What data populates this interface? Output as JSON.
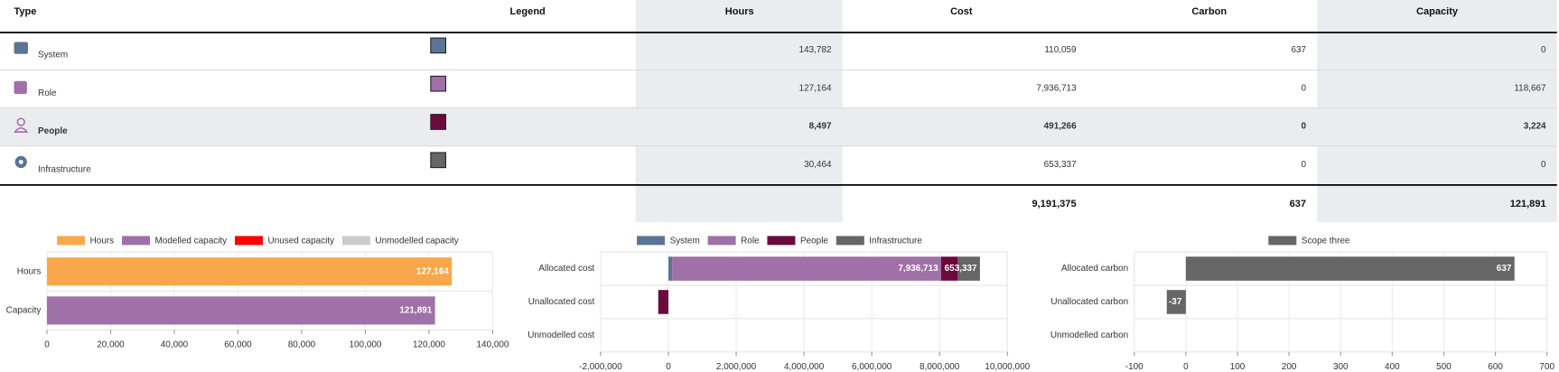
{
  "table": {
    "headers": [
      "Type",
      "Legend",
      "Hours",
      "Cost",
      "Carbon",
      "Capacity"
    ],
    "rows": [
      {
        "type": "System",
        "color": "#5a7594",
        "cells": [
          "143,782",
          "110,059",
          "637",
          "0"
        ]
      },
      {
        "type": "Role",
        "color": "#a070a8",
        "cells": [
          "127,164",
          "7,936,713",
          "0",
          "118,667"
        ]
      },
      {
        "type": "People",
        "color": "#6b0a3c",
        "bold": true,
        "cells": [
          "8,497",
          "491,266",
          "0",
          "3,224"
        ]
      },
      {
        "type": "Infrastructure",
        "color": "#666666",
        "cells": [
          "30,464",
          "653,337",
          "0",
          "0"
        ]
      }
    ],
    "totals": [
      null,
      "9,191,375",
      "637",
      "121,891"
    ]
  },
  "chart_data": [
    {
      "type": "bar",
      "orientation": "horizontal",
      "stacked": true,
      "categories": [
        "Hours",
        "Capacity"
      ],
      "series": [
        {
          "name": "Hours",
          "color": "#f8a84a",
          "values": [
            127164,
            null
          ],
          "value_labels": [
            "127,164",
            null
          ]
        },
        {
          "name": "Modelled capacity",
          "color": "#a070a8",
          "values": [
            null,
            121891
          ],
          "value_labels": [
            null,
            "121,891"
          ]
        },
        {
          "name": "Unused capacity",
          "color": "#ff0000",
          "values": [
            null,
            null
          ]
        },
        {
          "name": "Unmodelled capacity",
          "color": "#cccccc",
          "values": [
            null,
            null
          ]
        }
      ],
      "xlim": [
        0,
        140000
      ],
      "xticks": [
        0,
        {
          "value": 20000,
          "label": "20,000"
        },
        {
          "value": 40000,
          "label": "40,000"
        },
        {
          "value": 60000,
          "label": "60,000"
        },
        {
          "value": 80000,
          "label": "80,000"
        },
        {
          "value": 100000,
          "label": "100,000"
        },
        {
          "value": 120000,
          "label": "120,000"
        },
        {
          "value": 140000,
          "label": "140,000"
        }
      ],
      "grid": true
    },
    {
      "type": "bar",
      "orientation": "horizontal",
      "stacked": true,
      "categories": [
        "Allocated cost",
        "Unallocated cost",
        "Unmodelled cost"
      ],
      "series": [
        {
          "name": "System",
          "color": "#5a7594",
          "values": [
            110059,
            null,
            null
          ]
        },
        {
          "name": "Role",
          "color": "#a070a8",
          "values": [
            7936713,
            null,
            null
          ],
          "value_labels": [
            "7,936,713",
            null,
            null
          ]
        },
        {
          "name": "People",
          "color": "#6b0a3c",
          "values": [
            491266,
            -300000,
            null
          ]
        },
        {
          "name": "Infrastructure",
          "color": "#666666",
          "values": [
            653337,
            null,
            null
          ],
          "value_labels": [
            "653,337",
            null,
            null
          ]
        }
      ],
      "xlim": [
        -2000000,
        10000000
      ],
      "xticks": [
        {
          "value": -2000000,
          "label": "-2,000,000"
        },
        0,
        {
          "value": 2000000,
          "label": "2,000,000"
        },
        {
          "value": 4000000,
          "label": "4,000,000"
        },
        {
          "value": 6000000,
          "label": "6,000,000"
        },
        {
          "value": 8000000,
          "label": "8,000,000"
        },
        {
          "value": 10000000,
          "label": "10,000,000"
        }
      ],
      "grid": true
    },
    {
      "type": "bar",
      "orientation": "horizontal",
      "stacked": true,
      "categories": [
        "Allocated carbon",
        "Unallocated carbon",
        "Unmodelled carbon"
      ],
      "series": [
        {
          "name": "Scope three",
          "color": "#666666",
          "values": [
            637,
            -37,
            null
          ],
          "value_labels": [
            "637",
            "-37",
            null
          ]
        }
      ],
      "xlim": [
        -100,
        700
      ],
      "xticks": [
        -100,
        0,
        100,
        200,
        300,
        400,
        500,
        600,
        700
      ],
      "grid": true
    }
  ]
}
